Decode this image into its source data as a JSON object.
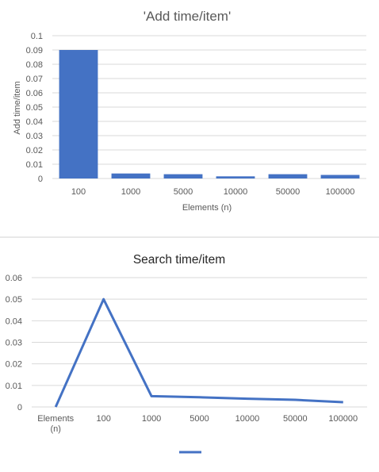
{
  "chart_data": [
    {
      "type": "bar",
      "title": "'Add time/item'",
      "xlabel": "Elements (n)",
      "ylabel": "Add time/item",
      "categories": [
        "100",
        "1000",
        "5000",
        "10000",
        "50000",
        "100000"
      ],
      "values": [
        0.09,
        0.0035,
        0.003,
        0.0015,
        0.003,
        0.0025
      ],
      "ylim": [
        0,
        0.1
      ],
      "yticks": [
        "0",
        "0.01",
        "0.02",
        "0.03",
        "0.04",
        "0.05",
        "0.06",
        "0.07",
        "0.08",
        "0.09",
        "0.1"
      ],
      "grid": true,
      "color": "#4472C4"
    },
    {
      "type": "line",
      "title": "Search time/item",
      "categories": [
        "Elements (n)",
        "100",
        "1000",
        "5000",
        "10000",
        "50000",
        "100000"
      ],
      "values": [
        0,
        0.05,
        0.005,
        0.0045,
        0.0038,
        0.0033,
        0.0022
      ],
      "ylim": [
        0,
        0.06
      ],
      "yticks": [
        "0",
        "0.01",
        "0.02",
        "0.03",
        "0.04",
        "0.05",
        "0.06"
      ],
      "grid": true,
      "legend": "bottom",
      "color": "#4472C4"
    }
  ]
}
